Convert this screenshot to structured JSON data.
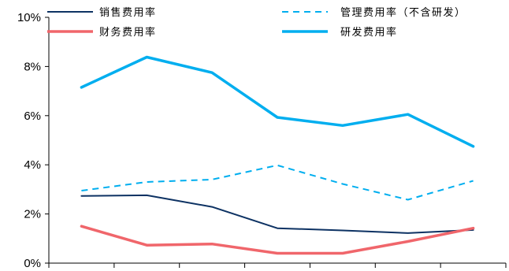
{
  "chart_data": {
    "type": "line",
    "x": [
      "",
      "",
      "",
      "",
      "",
      "",
      ""
    ],
    "ylim": [
      0,
      10
    ],
    "yticks": [
      0,
      2,
      4,
      6,
      8,
      10
    ],
    "ytick_labels": [
      "0%",
      "2%",
      "4%",
      "6%",
      "8%",
      "10%"
    ],
    "xlabel": "",
    "ylabel": "",
    "grid": false,
    "legend_position": "top",
    "series": [
      {
        "name": "销售费用率",
        "color": "#0d3263",
        "dash": "solid",
        "values": [
          2.73,
          2.76,
          2.29,
          1.42,
          1.33,
          1.22,
          1.35
        ]
      },
      {
        "name": "管理费用率（不含研发）",
        "color": "#00aeef",
        "dash": "dashed",
        "values": [
          2.95,
          3.3,
          3.4,
          3.98,
          3.22,
          2.58,
          3.35
        ]
      },
      {
        "name": "财务费用率",
        "color": "#f0666b",
        "dash": "solid",
        "values": [
          1.5,
          0.73,
          0.78,
          0.4,
          0.4,
          0.88,
          1.42
        ]
      },
      {
        "name": "研发费用率",
        "color": "#00aeef",
        "dash": "solid",
        "values": [
          7.15,
          8.38,
          7.75,
          5.93,
          5.6,
          6.05,
          4.75
        ]
      }
    ]
  }
}
